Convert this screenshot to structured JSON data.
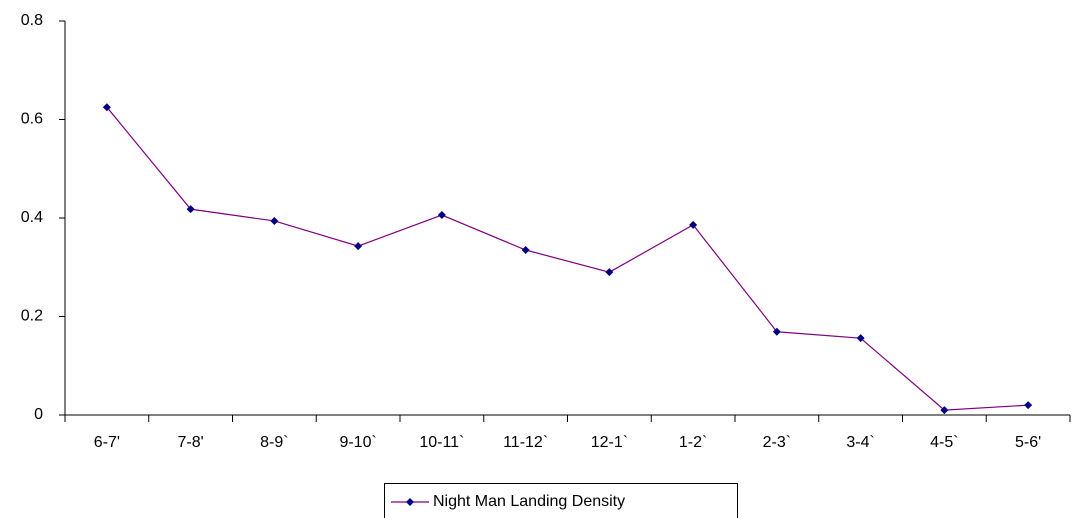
{
  "chart_data": {
    "type": "line",
    "categories": [
      "6-7'",
      "7-8'",
      "8-9`",
      "9-10`",
      "10-11`",
      "11-12`",
      "12-1`",
      "1-2`",
      "2-3`",
      "3-4`",
      "4-5`",
      "5-6'"
    ],
    "series": [
      {
        "name": "Night Man Landing Density",
        "color": "#800080",
        "marker_color": "#000080",
        "values": [
          0.625,
          0.418,
          0.394,
          0.343,
          0.406,
          0.335,
          0.29,
          0.386,
          0.169,
          0.156,
          0.01,
          0.02
        ]
      }
    ],
    "ylim": [
      0,
      0.8
    ],
    "yticks": [
      0,
      0.2,
      0.4,
      0.6,
      0.8
    ],
    "grid": false,
    "legend": "bottom"
  }
}
